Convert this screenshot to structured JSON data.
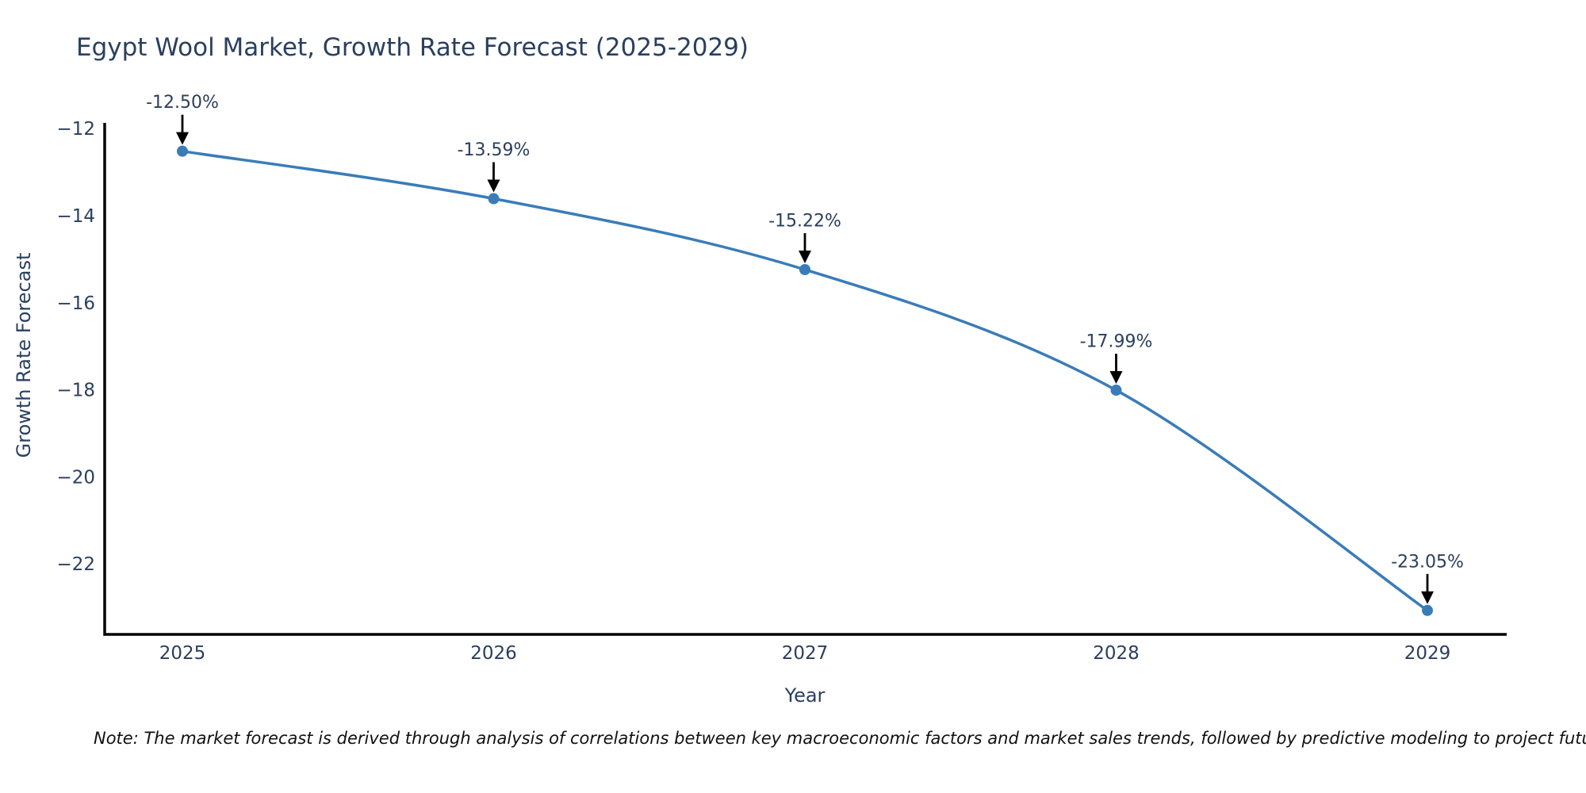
{
  "title": "Egypt Wool Market, Growth Rate Forecast (2025-2029)",
  "note": "Note: The market forecast is derived through analysis of correlations between key macroeconomic factors and market sales trends, followed by predictive modeling to project future sales",
  "chart_data": {
    "type": "line",
    "title": "Egypt Wool Market, Growth Rate Forecast (2025-2029)",
    "xlabel": "Year",
    "ylabel": "Growth Rate Forecast",
    "x": [
      2025,
      2026,
      2027,
      2028,
      2029
    ],
    "series": [
      {
        "name": "Growth Rate Forecast",
        "values": [
          -12.5,
          -13.59,
          -15.22,
          -17.99,
          -23.05
        ]
      }
    ],
    "point_labels": [
      "-12.50%",
      "-13.59%",
      "-15.22%",
      "-17.99%",
      "-23.05%"
    ],
    "xtick_labels": [
      "2025",
      "2026",
      "2027",
      "2028",
      "2029"
    ],
    "ytick_values": [
      -12,
      -14,
      -16,
      -18,
      -20,
      -22
    ],
    "ytick_labels": [
      "−12",
      "−14",
      "−16",
      "−18",
      "−20",
      "−22"
    ],
    "ylim": [
      -23.6,
      -11.85
    ],
    "grid": false,
    "legend_position": "none",
    "line_shape": "spline",
    "annotations_have_arrows": true,
    "colors": {
      "line": "#3a7cb8",
      "marker": "#3a7cb8",
      "arrow": "#000000",
      "text": "#2a3f5f",
      "axis": "#000000",
      "note_text": "#111111"
    }
  }
}
